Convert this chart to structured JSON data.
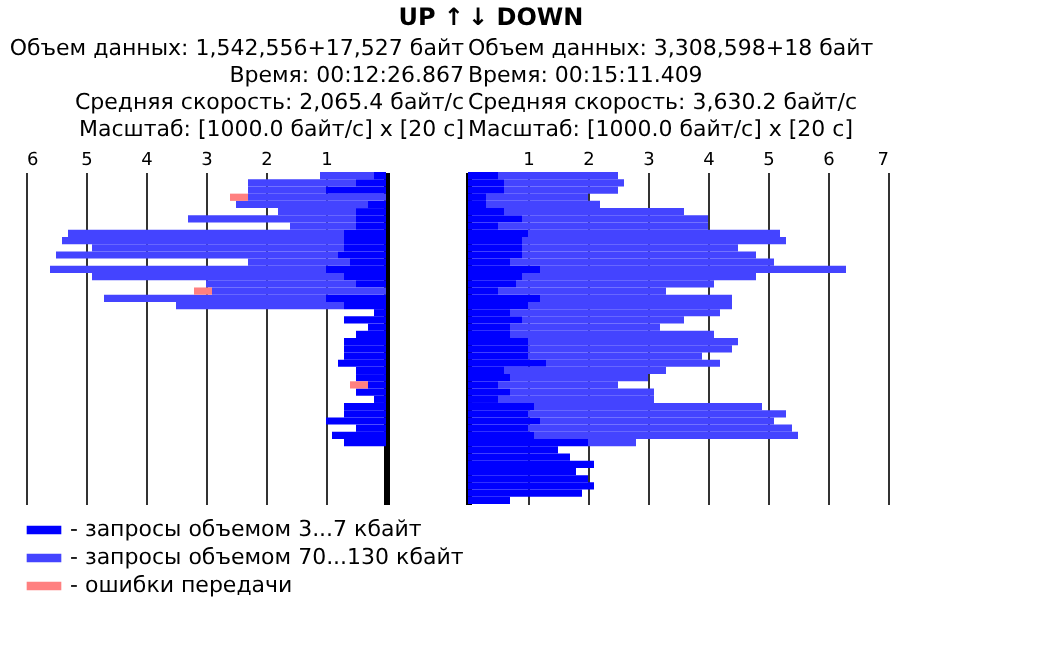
{
  "chart_data": [
    {
      "type": "bar",
      "orientation": "horizontal",
      "stacked": true,
      "title": "UP ↑",
      "annotations": [
        "Объем данных: 1,542,556+17,527 байт",
        "Время: 00:12:26.867",
        "Средняя скорость: 2,065.4 байт/с",
        "Масштаб: [1000.0 байт/с] x [20 с]"
      ],
      "categories": [
        null,
        null,
        null,
        null,
        null,
        null,
        null,
        null,
        null,
        null,
        null,
        null,
        null,
        null,
        null,
        null,
        null,
        null,
        null,
        null,
        null,
        null,
        null,
        null,
        null,
        null,
        null,
        null,
        null,
        null,
        null,
        null,
        null,
        null,
        null,
        null,
        null,
        null,
        null,
        null,
        null,
        null,
        null,
        null,
        null,
        null
      ],
      "series": [
        {
          "name": "- запросы объемом 3...7 кбайт",
          "color": "#0000ff",
          "values": [
            0.2,
            0.5,
            1.0,
            null,
            0.3,
            0.5,
            0.5,
            0.5,
            0.7,
            0.7,
            0.7,
            0.8,
            0.6,
            1.0,
            0.7,
            0.5,
            null,
            1.0,
            0.7,
            0.2,
            0.7,
            0.3,
            0.5,
            0.7,
            0.7,
            0.7,
            0.8,
            0.5,
            0.5,
            0.3,
            0.5,
            0.2,
            0.7,
            0.7,
            1.0,
            0.5,
            0.9,
            0.7,
            null,
            null,
            null,
            null,
            null,
            null,
            null,
            null
          ]
        },
        {
          "name": "- запросы объемом 70...130 кбайт",
          "color": "#4444ff",
          "values": [
            0.9,
            1.8,
            1.3,
            2.3,
            2.2,
            1.3,
            2.8,
            1.1,
            4.6,
            4.7,
            4.2,
            4.7,
            1.7,
            4.6,
            4.2,
            2.5,
            2.9,
            3.7,
            2.8,
            null,
            null,
            null,
            null,
            null,
            null,
            null,
            null,
            null,
            null,
            null,
            null,
            null,
            null,
            null,
            null,
            null,
            null,
            null,
            null,
            null,
            null,
            null,
            null,
            null,
            null,
            null
          ]
        },
        {
          "name": "- ошибки передачи",
          "color": "#ff8080",
          "values": [
            null,
            null,
            null,
            0.3,
            null,
            null,
            null,
            null,
            null,
            null,
            null,
            null,
            null,
            null,
            null,
            null,
            0.3,
            null,
            null,
            null,
            null,
            null,
            null,
            null,
            null,
            null,
            null,
            null,
            null,
            0.3,
            null,
            null,
            null,
            null,
            null,
            null,
            null,
            null,
            null,
            null,
            null,
            null,
            null,
            null,
            null,
            null
          ]
        }
      ],
      "xlim": [
        6,
        0
      ],
      "xticks": [
        1,
        2,
        3,
        4,
        5,
        6
      ],
      "grid": "x",
      "legend": "bottom"
    },
    {
      "type": "bar",
      "orientation": "horizontal",
      "stacked": true,
      "title": "↓ DOWN",
      "annotations": [
        "Объем данных: 3,308,598+18 байт",
        "Время: 00:15:11.409",
        "Средняя скорость: 3,630.2 байт/с",
        "Масштаб: [1000.0 байт/с] x [20 с]"
      ],
      "categories": [
        null,
        null,
        null,
        null,
        null,
        null,
        null,
        null,
        null,
        null,
        null,
        null,
        null,
        null,
        null,
        null,
        null,
        null,
        null,
        null,
        null,
        null,
        null,
        null,
        null,
        null,
        null,
        null,
        null,
        null,
        null,
        null,
        null,
        null,
        null,
        null,
        null,
        null,
        null,
        null,
        null,
        null,
        null,
        null,
        null,
        null
      ],
      "series": [
        {
          "color": "#0000ff",
          "values": [
            0.5,
            0.6,
            0.6,
            0.3,
            0.3,
            0.6,
            0.9,
            0.5,
            1.0,
            0.9,
            0.9,
            0.9,
            0.7,
            1.2,
            0.9,
            0.8,
            0.5,
            1.2,
            1.0,
            0.7,
            0.9,
            0.7,
            0.7,
            1.0,
            1.0,
            1.0,
            1.3,
            0.6,
            0.7,
            0.5,
            0.7,
            0.5,
            1.1,
            1.0,
            1.2,
            1.0,
            1.1,
            2.0,
            1.5,
            1.7,
            2.1,
            1.8,
            2.0,
            2.1,
            1.9,
            0.7
          ]
        },
        {
          "color": "#4444ff",
          "values": [
            2.0,
            2.0,
            1.9,
            1.7,
            1.9,
            3.0,
            3.1,
            3.5,
            4.2,
            4.4,
            3.6,
            3.9,
            4.4,
            5.1,
            3.9,
            3.3,
            2.8,
            3.2,
            3.4,
            3.5,
            2.7,
            2.5,
            3.4,
            3.5,
            3.4,
            2.9,
            2.9,
            2.7,
            2.3,
            2.0,
            2.4,
            2.6,
            3.8,
            4.3,
            3.9,
            4.4,
            4.4,
            0.8,
            null,
            null,
            null,
            null,
            null,
            null,
            null,
            null
          ]
        }
      ],
      "xlim": [
        0,
        7
      ],
      "xticks": [
        1,
        2,
        3,
        4,
        5,
        6,
        7
      ],
      "grid": "x"
    }
  ]
}
